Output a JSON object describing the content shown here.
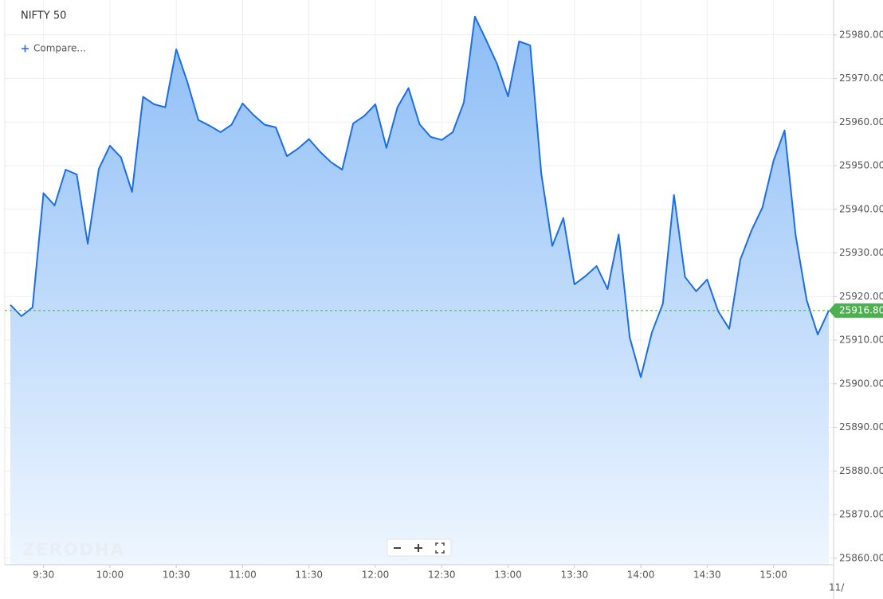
{
  "chart_data": {
    "type": "area",
    "title": "NIFTY 50",
    "compare_label": "Compare...",
    "watermark": "ZERODHA",
    "date_label": "11/",
    "color": "#1c6de6",
    "grid": true,
    "categories": [
      null,
      null,
      null,
      "9:30",
      null,
      null,
      null,
      null,
      null,
      "10:00",
      null,
      null,
      null,
      null,
      null,
      "10:30",
      null,
      null,
      null,
      null,
      null,
      "11:00",
      null,
      null,
      null,
      null,
      null,
      "11:30",
      null,
      null,
      null,
      null,
      null,
      "12:00",
      null,
      null,
      null,
      null,
      null,
      "12:30",
      null,
      null,
      null,
      null,
      null,
      "13:00",
      null,
      null,
      null,
      null,
      null,
      "13:30",
      null,
      null,
      null,
      null,
      null,
      "14:00",
      null,
      null,
      null,
      null,
      null,
      "14:30",
      null,
      null,
      null,
      null,
      null,
      "15:00",
      null,
      null,
      null,
      null,
      null
    ],
    "values": [
      25918.1,
      25915.5,
      25917.5,
      25943.7,
      25940.9,
      25949.1,
      25948.0,
      25932.1,
      25949.3,
      25954.6,
      25951.9,
      25944.0,
      25965.8,
      25964.1,
      25963.4,
      25976.7,
      25969.2,
      25960.5,
      25959.2,
      25957.7,
      25959.4,
      25964.3,
      25961.6,
      25959.4,
      25958.8,
      25952.2,
      25953.9,
      25956.1,
      25953.2,
      25950.8,
      25949.1,
      25959.7,
      25961.4,
      25964.1,
      25954.1,
      25963.4,
      25967.8,
      25959.5,
      25956.6,
      25955.9,
      25957.7,
      25964.5,
      25984.2,
      25978.9,
      25973.4,
      25965.9,
      25978.5,
      25977.6,
      25948.2,
      25931.6,
      25938.0,
      25922.8,
      25924.7,
      25927.0,
      25921.7,
      25934.2,
      25910.6,
      25901.5,
      25911.7,
      25918.4,
      25943.3,
      25924.5,
      25921.2,
      25923.9,
      25916.6,
      25912.6,
      25928.5,
      25935.1,
      25940.4,
      25951.1,
      25958.1,
      25934.0,
      25919.2,
      25911.3,
      25916.8
    ],
    "last_price": {
      "value": 25916.8,
      "label": "25916.80"
    },
    "last_price_color": "#4caf50",
    "ylim": [
      25858.5,
      25988
    ],
    "yticks": [
      {
        "value": 25860,
        "label": "25860.00"
      },
      {
        "value": 25870,
        "label": "25870.00"
      },
      {
        "value": 25880,
        "label": "25880.00"
      },
      {
        "value": 25890,
        "label": "25890.00"
      },
      {
        "value": 25900,
        "label": "25900.00"
      },
      {
        "value": 25910,
        "label": "25910.00"
      },
      {
        "value": 25920,
        "label": "25920.00"
      },
      {
        "value": 25930,
        "label": "25930.00"
      },
      {
        "value": 25940,
        "label": "25940.00"
      },
      {
        "value": 25950,
        "label": "25950.00"
      },
      {
        "value": 25960,
        "label": "25960.00"
      },
      {
        "value": 25970,
        "label": "25970.00"
      },
      {
        "value": 25980,
        "label": "25980.00"
      }
    ]
  }
}
